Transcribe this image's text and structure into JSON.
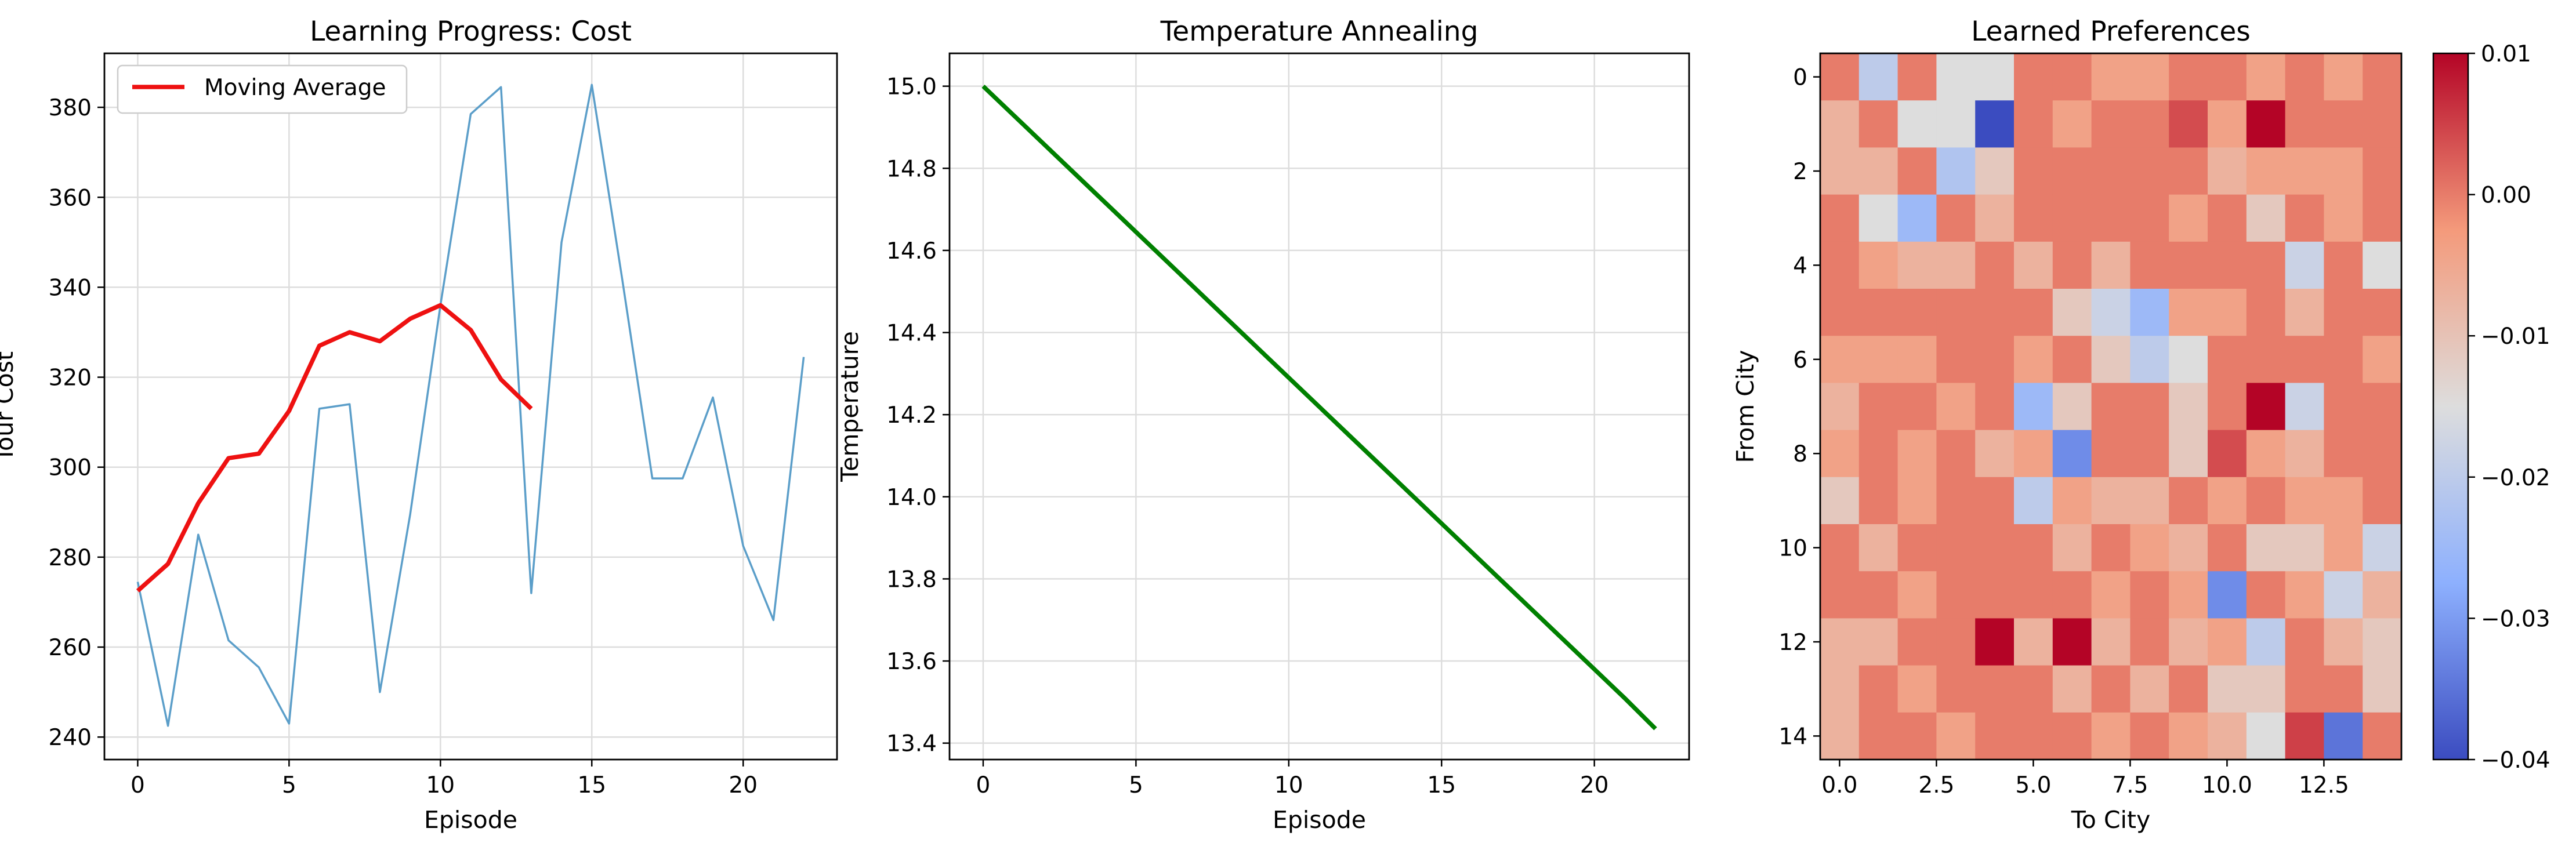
{
  "chart_data": [
    {
      "type": "line",
      "title": "Learning Progress: Cost",
      "xlabel": "Episode",
      "ylabel": "Tour Cost",
      "xlim": [
        -1.1,
        23.1
      ],
      "ylim": [
        235,
        392
      ],
      "xticks": [
        0,
        5,
        10,
        15,
        20
      ],
      "yticks": [
        240,
        260,
        280,
        300,
        320,
        340,
        360,
        380
      ],
      "grid": true,
      "legend_position": "upper-left",
      "colors": {
        "raw": "#5b9ec9",
        "avg": "#ee1111"
      },
      "series": [
        {
          "key": "raw",
          "x": [
            0,
            1,
            2,
            3,
            4,
            5,
            6,
            7,
            8,
            9,
            10,
            11,
            12,
            13,
            14,
            15,
            16,
            17,
            18,
            19,
            20,
            21,
            22
          ],
          "values": [
            274.5,
            242.5,
            285,
            261.5,
            255.5,
            243,
            313,
            314,
            250,
            289.5,
            336,
            378.5,
            384.5,
            272,
            350,
            385,
            342,
            297.5,
            297.5,
            315.5,
            282.5,
            266,
            324.5
          ]
        },
        {
          "key": "avg",
          "name": "Moving Average",
          "x": [
            0,
            1,
            2,
            3,
            4,
            5,
            6,
            7,
            8,
            9,
            10,
            11,
            12,
            13
          ],
          "values": [
            272.5,
            278.5,
            292,
            302,
            303,
            312.5,
            327,
            330,
            328,
            333,
            336,
            330.5,
            319.5,
            313
          ]
        }
      ]
    },
    {
      "type": "line",
      "title": "Temperature Annealing",
      "xlabel": "Episode",
      "ylabel": "Temperature",
      "xlim": [
        -1.1,
        23.1
      ],
      "ylim": [
        13.36,
        15.08
      ],
      "xticks": [
        0,
        5,
        10,
        15,
        20
      ],
      "yticks": [
        "13.4",
        "13.6",
        "13.8",
        "14.0",
        "14.2",
        "14.4",
        "14.6",
        "14.8",
        "15.0"
      ],
      "grid": true,
      "colors": {
        "line": "#008000"
      },
      "series": [
        {
          "key": "line",
          "x": [
            0,
            1,
            2,
            3,
            4,
            5,
            6,
            7,
            8,
            9,
            10,
            11,
            12,
            13,
            14,
            15,
            16,
            17,
            18,
            19,
            20,
            21,
            22
          ],
          "values": [
            15.0,
            14.929,
            14.858,
            14.787,
            14.716,
            14.645,
            14.574,
            14.503,
            14.432,
            14.361,
            14.29,
            14.219,
            14.148,
            14.077,
            14.006,
            13.935,
            13.864,
            13.793,
            13.722,
            13.651,
            13.58,
            13.509,
            13.435
          ]
        }
      ]
    },
    {
      "type": "heatmap",
      "title": "Learned Preferences",
      "xlabel": "To City",
      "ylabel": "From City",
      "xticks": [
        "0.0",
        "2.5",
        "5.0",
        "7.5",
        "10.0",
        "12.5"
      ],
      "yticks": [
        "0",
        "2",
        "4",
        "6",
        "8",
        "10",
        "12",
        "14"
      ],
      "colormap": "coolwarm",
      "vmin": -0.04,
      "vmax": 0.01,
      "colorbar_ticks": [
        "0.01",
        "0.00",
        "−0.01",
        "−0.02",
        "−0.03",
        "−0.04"
      ],
      "matrix": [
        [
          0,
          -0.02,
          0,
          -0.015,
          -0.015,
          0,
          0,
          -0.004,
          -0.004,
          0,
          0,
          -0.004,
          0,
          -0.004,
          0
        ],
        [
          -0.007,
          0,
          -0.015,
          -0.015,
          -0.04,
          0,
          -0.004,
          0,
          0,
          0.004,
          -0.004,
          0.01,
          0,
          0,
          0
        ],
        [
          -0.007,
          -0.007,
          0,
          -0.022,
          -0.011,
          0,
          0,
          0,
          0,
          0,
          -0.007,
          -0.004,
          -0.004,
          -0.004,
          0
        ],
        [
          0,
          -0.015,
          -0.025,
          0,
          -0.007,
          0,
          0,
          0,
          0,
          -0.004,
          0,
          -0.011,
          0,
          -0.004,
          0
        ],
        [
          0,
          -0.004,
          -0.007,
          -0.007,
          0,
          -0.007,
          0,
          -0.007,
          0,
          0,
          0,
          0,
          -0.018,
          0,
          -0.015
        ],
        [
          0,
          0,
          0,
          0,
          0,
          0,
          -0.011,
          -0.018,
          -0.025,
          -0.004,
          -0.004,
          0,
          -0.007,
          0,
          0
        ],
        [
          -0.004,
          -0.004,
          -0.004,
          0,
          0,
          -0.004,
          0,
          -0.011,
          -0.02,
          -0.015,
          0,
          0,
          0,
          0,
          -0.004
        ],
        [
          -0.007,
          0,
          0,
          -0.004,
          0,
          -0.025,
          -0.011,
          0,
          0,
          -0.011,
          0,
          0.01,
          -0.018,
          0,
          0
        ],
        [
          -0.004,
          0,
          -0.004,
          0,
          -0.007,
          -0.004,
          -0.032,
          0,
          0,
          -0.011,
          0.004,
          -0.004,
          -0.007,
          0,
          0
        ],
        [
          -0.011,
          0,
          -0.004,
          0,
          0,
          -0.02,
          -0.004,
          -0.007,
          -0.007,
          0,
          -0.004,
          0,
          -0.004,
          -0.004,
          0
        ],
        [
          0,
          -0.007,
          0,
          0,
          0,
          0,
          -0.007,
          0,
          -0.004,
          -0.007,
          0,
          -0.011,
          -0.011,
          -0.004,
          -0.018
        ],
        [
          0,
          0,
          -0.004,
          0,
          0,
          0,
          0,
          -0.004,
          0,
          -0.004,
          -0.032,
          0,
          -0.004,
          -0.018,
          -0.007
        ],
        [
          -0.007,
          -0.007,
          0,
          0,
          0.01,
          -0.007,
          0.01,
          -0.007,
          0,
          -0.007,
          -0.004,
          -0.02,
          0,
          -0.007,
          -0.011
        ],
        [
          -0.007,
          0,
          -0.004,
          0,
          0,
          0,
          -0.007,
          0,
          -0.007,
          0,
          -0.011,
          -0.011,
          0,
          0,
          -0.011
        ],
        [
          -0.007,
          0,
          0,
          -0.004,
          0,
          0,
          0,
          -0.004,
          0,
          -0.004,
          -0.007,
          -0.015,
          0.005,
          -0.035,
          0
        ]
      ]
    }
  ]
}
